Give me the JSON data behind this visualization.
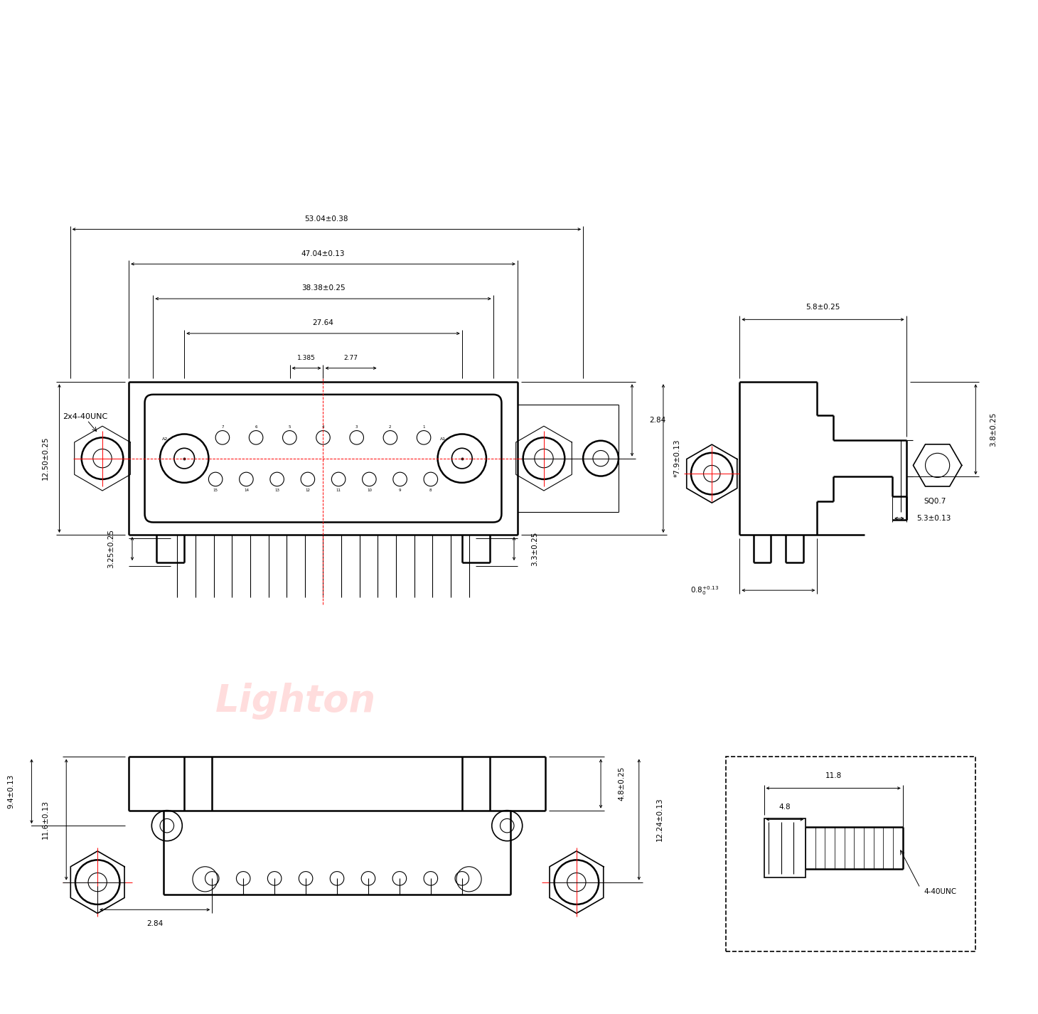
{
  "bg_color": "#ffffff",
  "line_color": "#000000",
  "red_color": "#ff0000",
  "watermark_color": "#ffaaaa",
  "watermark_text": "Lighton",
  "watermark_alpha": 0.4,
  "dims_top": {
    "d1": "53.04±0.38",
    "d2": "47.04±0.13",
    "d3": "38.38±0.25",
    "d4": "27.64",
    "d5_left": "1.385",
    "d6": "2.77",
    "d_right_top": "2.84",
    "d_right_vert": "*7.9±0.13",
    "d_left_vert": "12.50±0.25",
    "d_below_left": "3.25±0.25",
    "d_below_right": "3.3±0.25"
  },
  "dims_side": {
    "d_top": "5.8±0.25",
    "d_right_vert": "3.8±0.25",
    "d_bot_left": "0.8",
    "d_bot_left_tol": "+0.13\n0",
    "sq": "SQ0.7",
    "d_bottom": "5.3±0.13"
  },
  "dims_bottom": {
    "d_left1": "11.6±0.13",
    "d_left2": "9.4±0.13",
    "d_right_vert": "12.24±0.13",
    "d_top_vert": "4.8±0.25",
    "d_bottom": "2.84"
  },
  "dims_detail": {
    "d_top": "11.8",
    "d_inner": "4.8",
    "label": "4-40UNC"
  },
  "label_2x4": "2x4-40UNC"
}
